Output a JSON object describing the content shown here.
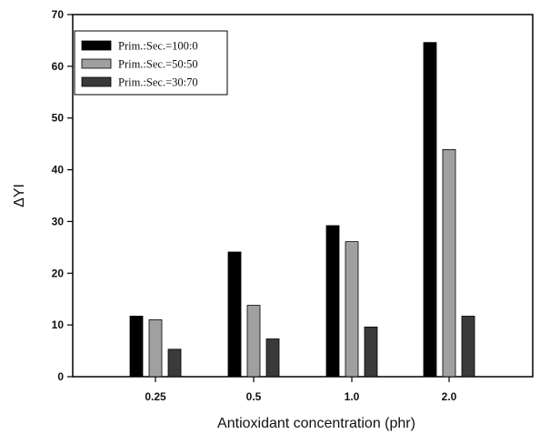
{
  "chart_data": {
    "type": "bar",
    "title": "",
    "xlabel": "Antioxidant concentration (phr)",
    "ylabel": "ΔYI",
    "categories": [
      "0.25",
      "0.5",
      "1.0",
      "2.0"
    ],
    "ylim": [
      0,
      70
    ],
    "yticks": [
      0,
      10,
      20,
      30,
      40,
      50,
      60,
      70
    ],
    "grid": false,
    "legend_position": "top-left",
    "series": [
      {
        "name": "Prim.:Sec.=100:0",
        "color": "#000000",
        "values": [
          11.7,
          24.1,
          29.2,
          64.6
        ]
      },
      {
        "name": "Prim.:Sec.=50:50",
        "color": "#a0a0a0",
        "values": [
          11.0,
          13.8,
          26.1,
          43.9
        ]
      },
      {
        "name": "Prim.:Sec.=30:70",
        "color": "#3a3a3a",
        "values": [
          5.3,
          7.3,
          9.6,
          11.7
        ]
      }
    ]
  }
}
